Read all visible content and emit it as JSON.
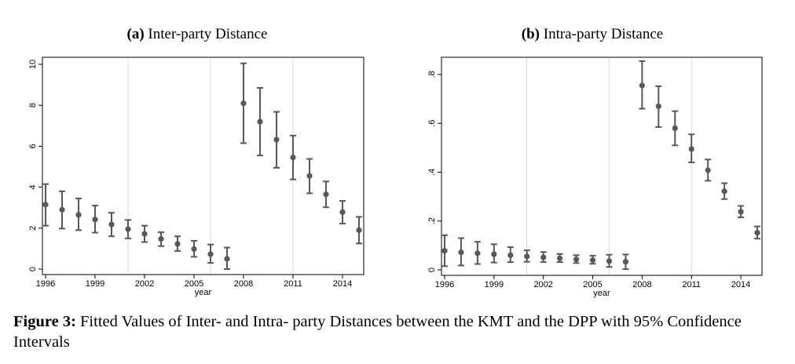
{
  "chart_data": [
    {
      "type": "scatter",
      "panel_label": "(a)",
      "title": "Inter-party Distance",
      "xlabel": "year",
      "ylabel": "",
      "xlim": [
        1996,
        2015
      ],
      "ylim": [
        0,
        10
      ],
      "xticks": [
        "1996",
        "1999",
        "2002",
        "2005",
        "2008",
        "2011",
        "2014"
      ],
      "yticks": [
        "0",
        "2",
        "4",
        "6",
        "8",
        "10"
      ],
      "vertical_reference_lines": [
        2001,
        2006,
        2011
      ],
      "grid": false,
      "error_bars": "95% CI",
      "series": [
        {
          "x": [
            1996,
            1997,
            1998,
            1999,
            2000,
            2001,
            2002,
            2003,
            2004,
            2005,
            2006,
            2007,
            2008,
            2009,
            2010,
            2011,
            2012,
            2013,
            2014,
            2015
          ],
          "values": [
            3.15,
            2.9,
            2.65,
            2.42,
            2.18,
            1.95,
            1.72,
            1.47,
            1.23,
            0.98,
            0.73,
            0.5,
            8.1,
            7.2,
            6.32,
            5.45,
            4.55,
            3.65,
            2.78,
            1.9
          ],
          "lower": [
            2.12,
            1.98,
            1.9,
            1.78,
            1.6,
            1.5,
            1.32,
            1.12,
            0.88,
            0.6,
            0.3,
            0.0,
            6.15,
            5.55,
            4.95,
            4.38,
            3.7,
            3.02,
            2.22,
            1.25
          ],
          "upper": [
            4.15,
            3.8,
            3.45,
            3.1,
            2.75,
            2.4,
            2.12,
            1.8,
            1.6,
            1.38,
            1.2,
            1.05,
            10.05,
            8.85,
            7.68,
            6.52,
            5.38,
            4.28,
            3.33,
            2.55
          ]
        }
      ]
    },
    {
      "type": "scatter",
      "panel_label": "(b)",
      "title": "Intra-party Distance",
      "xlabel": "year",
      "ylabel": "",
      "xlim": [
        1996,
        2015
      ],
      "ylim": [
        0,
        0.8
      ],
      "xticks": [
        "1996",
        "1999",
        "2002",
        "2005",
        "2008",
        "2011",
        "2014"
      ],
      "yticks": [
        "0",
        ".2",
        ".4",
        ".6",
        ".8"
      ],
      "vertical_reference_lines": [
        2001,
        2006,
        2011
      ],
      "grid": false,
      "error_bars": "95% CI",
      "series": [
        {
          "x": [
            1996,
            1997,
            1998,
            1999,
            2000,
            2001,
            2002,
            2003,
            2004,
            2005,
            2006,
            2007,
            2008,
            2009,
            2010,
            2011,
            2012,
            2013,
            2014,
            2015
          ],
          "values": [
            0.078,
            0.072,
            0.068,
            0.064,
            0.06,
            0.055,
            0.051,
            0.047,
            0.043,
            0.04,
            0.036,
            0.033,
            0.755,
            0.67,
            0.58,
            0.495,
            0.408,
            0.322,
            0.238,
            0.152
          ],
          "lower": [
            0.015,
            0.018,
            0.024,
            0.03,
            0.032,
            0.033,
            0.032,
            0.032,
            0.028,
            0.025,
            0.012,
            0.003,
            0.66,
            0.585,
            0.51,
            0.44,
            0.365,
            0.29,
            0.215,
            0.128
          ],
          "upper": [
            0.142,
            0.13,
            0.115,
            0.105,
            0.093,
            0.08,
            0.073,
            0.065,
            0.06,
            0.058,
            0.062,
            0.063,
            0.855,
            0.752,
            0.65,
            0.555,
            0.452,
            0.355,
            0.262,
            0.178
          ]
        }
      ]
    }
  ],
  "caption": {
    "label": "Figure 3:",
    "text": "Fitted Values of Inter- and Intra- party Distances between the KMT and the DPP with 95% Confidence Intervals"
  },
  "colors": {
    "marker": "#585858",
    "frame": "#000000",
    "ref_line": "#d9d9d9"
  }
}
